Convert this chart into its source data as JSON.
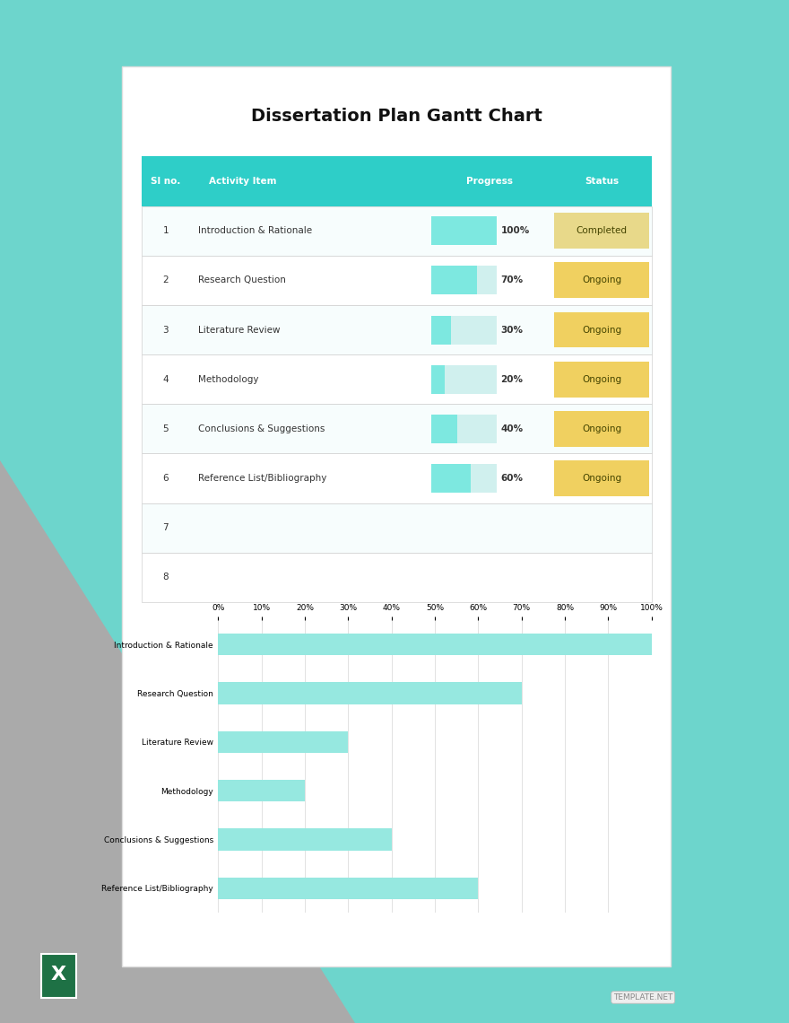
{
  "title": "Dissertation Plan Gantt Chart",
  "background_page": "#ffffff",
  "background_outer_teal": "#6dd5cc",
  "background_outer_gray": "#b0b0b0",
  "header_bg": "#2ecec8",
  "header_text_color": "#ffffff",
  "table_header_cols": [
    "Sl no.",
    "Activity Item",
    "Progress",
    "Status"
  ],
  "rows": [
    {
      "sl": "1",
      "activity": "Introduction & Rationale",
      "progress": 100,
      "status": "Completed",
      "status_color": "#e8d98a"
    },
    {
      "sl": "2",
      "activity": "Research Question",
      "progress": 70,
      "status": "Ongoing",
      "status_color": "#f0d060"
    },
    {
      "sl": "3",
      "activity": "Literature Review",
      "progress": 30,
      "status": "Ongoing",
      "status_color": "#f0d060"
    },
    {
      "sl": "4",
      "activity": "Methodology",
      "progress": 20,
      "status": "Ongoing",
      "status_color": "#f0d060"
    },
    {
      "sl": "5",
      "activity": "Conclusions & Suggestions",
      "progress": 40,
      "status": "Ongoing",
      "status_color": "#f0d060"
    },
    {
      "sl": "6",
      "activity": "Reference List/Bibliography",
      "progress": 60,
      "status": "Ongoing",
      "status_color": "#f0d060"
    },
    {
      "sl": "7",
      "activity": "",
      "progress": null,
      "status": "",
      "status_color": "#ffffff"
    },
    {
      "sl": "8",
      "activity": "",
      "progress": null,
      "status": "",
      "status_color": "#ffffff"
    }
  ],
  "progress_bar_color": "#7de8e0",
  "progress_bg_color": "#d0f0ee",
  "row_line_color": "#d0d0d0",
  "chart_bar_color": "#96e8e0",
  "chart_bg": "#ffffff",
  "chart_grid_color": "#dddddd",
  "chart_labels": [
    "Introduction & Rationale",
    "Research Question",
    "Literature Review",
    "Methodology",
    "Conclusions & Suggestions",
    "Reference List/Bibliography"
  ],
  "chart_values": [
    100,
    70,
    30,
    20,
    40,
    60
  ],
  "excel_icon_color": "#1e7145",
  "template_label": "TEMPLATE.NET"
}
